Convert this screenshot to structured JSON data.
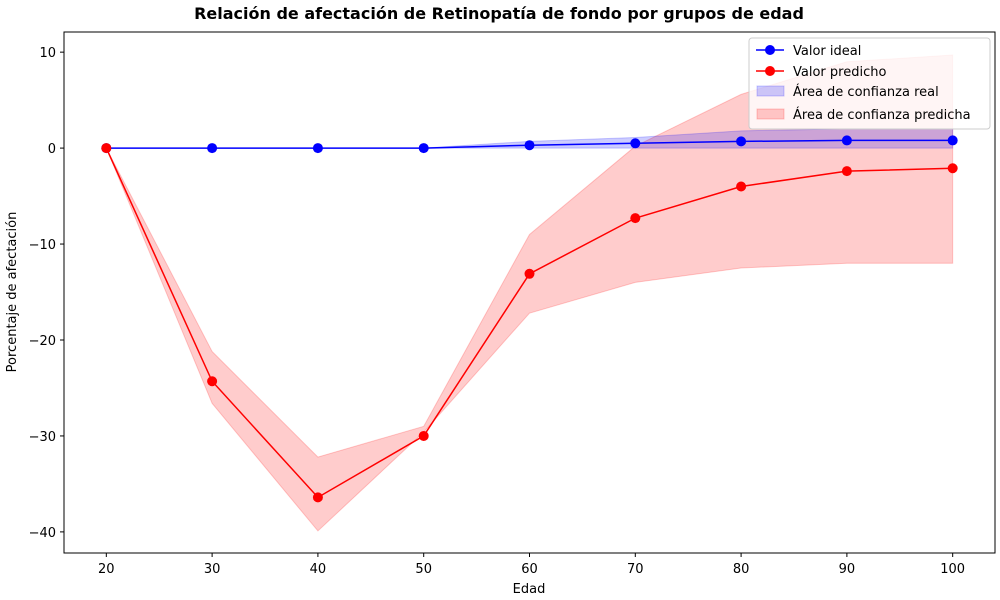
{
  "chart_data": {
    "type": "line",
    "title": "Relación de afectación de Retinopatía de fondo por grupos de edad",
    "xlabel": "Edad",
    "ylabel": "Porcentaje de afectación",
    "x": [
      20,
      30,
      40,
      50,
      60,
      70,
      80,
      90,
      100
    ],
    "xlim": [
      16,
      104
    ],
    "ylim": [
      -42.2,
      12.1
    ],
    "xticks": [
      "20",
      "30",
      "40",
      "50",
      "60",
      "70",
      "80",
      "90",
      "100"
    ],
    "yticks": [
      "10",
      "0",
      "−10",
      "−20",
      "−30",
      "−40"
    ],
    "ytick_values": [
      10,
      0,
      -10,
      -20,
      -30,
      -40
    ],
    "grid": false,
    "legend_position": "top-right",
    "series": [
      {
        "name": "Valor ideal",
        "kind": "line",
        "color": "#0000ff",
        "values": [
          0,
          0,
          0,
          0,
          0.3,
          0.5,
          0.7,
          0.8,
          0.8
        ]
      },
      {
        "name": "Valor predicho",
        "kind": "line",
        "color": "#ff0000",
        "values": [
          0,
          -24.3,
          -36.4,
          -30.0,
          -13.1,
          -7.3,
          -4.0,
          -2.4,
          -2.1
        ]
      },
      {
        "name": "Área de confianza real",
        "kind": "band",
        "color": "#0000ff",
        "lower": [
          0,
          0,
          0,
          0,
          0,
          0,
          0,
          0,
          0
        ],
        "upper": [
          0,
          0,
          0,
          0,
          0.7,
          1.1,
          1.8,
          2.0,
          2.0
        ]
      },
      {
        "name": "Área de confianza predicha",
        "kind": "band",
        "color": "#ff0000",
        "lower": [
          0,
          -26.6,
          -39.9,
          -29.6,
          -17.2,
          -14.0,
          -12.5,
          -12.0,
          -12.0
        ],
        "upper": [
          0,
          -21.2,
          -32.2,
          -29.0,
          -9.0,
          0.2,
          5.6,
          9.0,
          9.7
        ]
      }
    ]
  }
}
